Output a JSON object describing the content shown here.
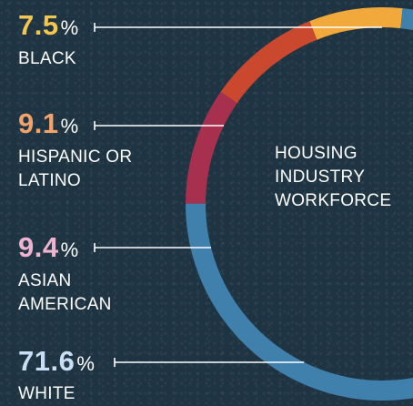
{
  "chart_data": {
    "type": "pie",
    "variant": "ring",
    "center_label": [
      "HOUSING",
      "INDUSTRY",
      "WORKFORCE"
    ],
    "categories": [
      "BLACK",
      "HISPANIC OR LATINO",
      "ASIAN AMERICAN",
      "WHITE"
    ],
    "values": [
      7.5,
      9.1,
      9.4,
      71.6
    ],
    "value_labels": [
      "7.5",
      "9.1",
      "9.4",
      "71.6"
    ],
    "unit": "%",
    "colors": [
      "#f2a93b",
      "#c9482e",
      "#a8304f",
      "#3f80ad"
    ],
    "label_colors": [
      "#f4c64e",
      "#f1a36a",
      "#f0b3cf",
      "#c9ddf4"
    ],
    "legend_lines": [
      [
        "BLACK"
      ],
      [
        "HISPANIC OR",
        "LATINO"
      ],
      [
        "ASIAN",
        "AMERICAN"
      ],
      [
        "WHITE"
      ]
    ],
    "background": "#1f3442"
  }
}
